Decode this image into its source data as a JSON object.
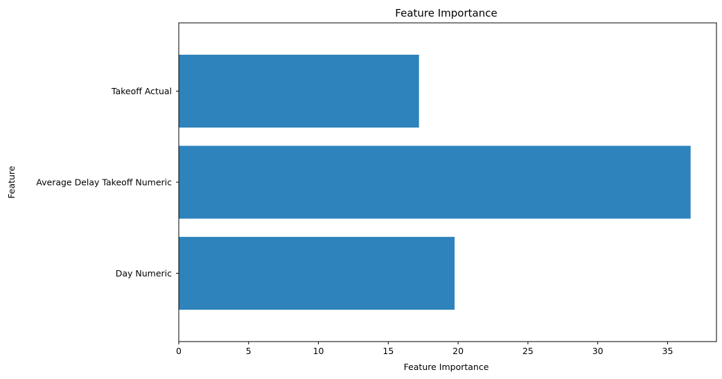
{
  "chart_data": {
    "type": "bar",
    "orientation": "horizontal",
    "title": "Feature Importance",
    "xlabel": "Feature Importance",
    "ylabel": "Feature",
    "categories": [
      "Day Numeric",
      "Average Delay Takeoff Numeric",
      "Takeoff Actual"
    ],
    "values": [
      19.75,
      36.65,
      17.2
    ],
    "xlim": [
      0,
      38.5
    ],
    "xticks": [
      0,
      5,
      10,
      15,
      20,
      25,
      30,
      35
    ],
    "grid": false,
    "legend": "none",
    "bar_color": "#2e83bc"
  }
}
